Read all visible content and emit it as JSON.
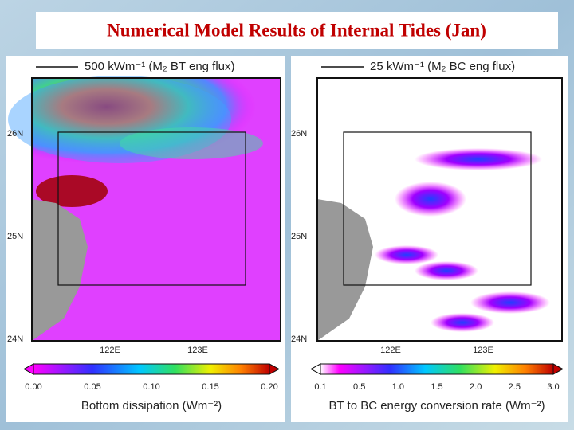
{
  "title": "Numerical Model Results of Internal Tides (Jan)",
  "panels": [
    {
      "header": "500 kWm⁻¹ (M₂ BT eng flux)",
      "lat_labels": [
        "26N",
        "25N",
        "24N"
      ],
      "lon_labels": [
        "122E",
        "123E"
      ],
      "colorbar_ticks": [
        "0.00",
        "0.05",
        "0.10",
        "0.15",
        "0.20"
      ],
      "colorbar_label": "Bottom dissipation (Wm⁻²)"
    },
    {
      "header": "25 kWm⁻¹ (M₂ BC eng flux)",
      "lat_labels": [
        "26N",
        "25N",
        "24N"
      ],
      "lon_labels": [
        "122E",
        "123E"
      ],
      "colorbar_ticks": [
        "0.1",
        "0.5",
        "1.0",
        "1.5",
        "2.0",
        "2.5",
        "3.0"
      ],
      "colorbar_label": "BT to BC energy conversion rate (Wm⁻²)"
    }
  ]
}
